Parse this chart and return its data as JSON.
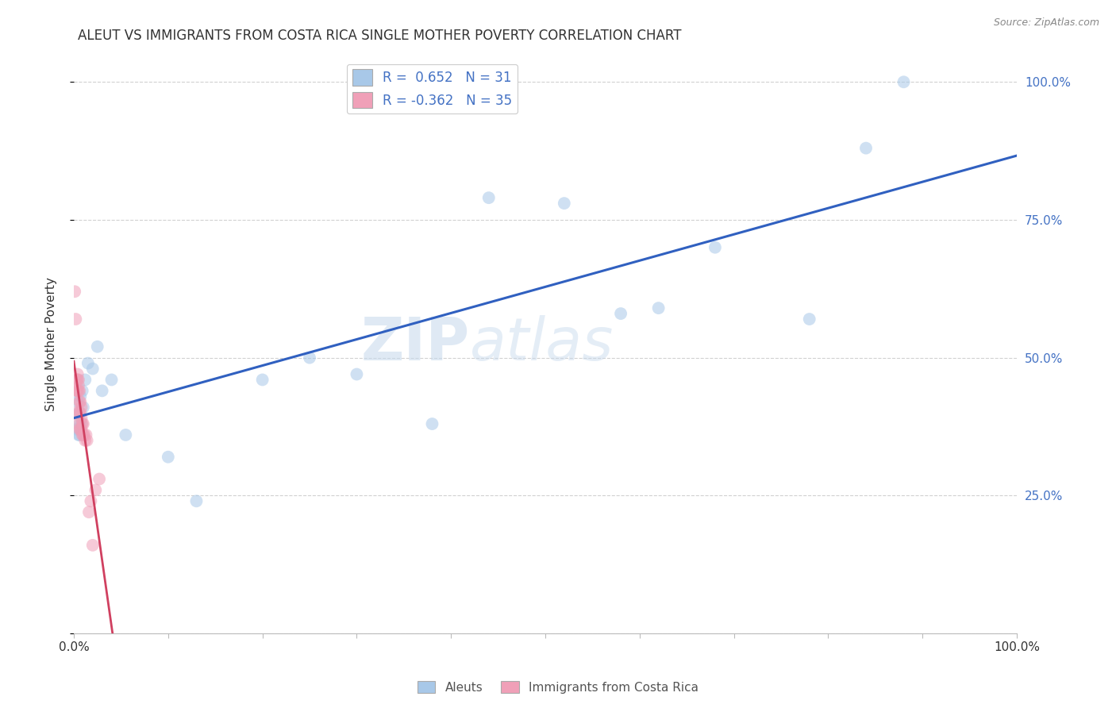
{
  "title": "ALEUT VS IMMIGRANTS FROM COSTA RICA SINGLE MOTHER POVERTY CORRELATION CHART",
  "source": "Source: ZipAtlas.com",
  "ylabel": "Single Mother Poverty",
  "legend_label1": "Aleuts",
  "legend_label2": "Immigrants from Costa Rica",
  "r1": 0.652,
  "n1": 31,
  "r2": -0.362,
  "n2": 35,
  "blue_color": "#a8c8e8",
  "pink_color": "#f0a0b8",
  "blue_line_color": "#3060c0",
  "pink_line_color": "#d04060",
  "watermark_zip": "ZIP",
  "watermark_atlas": "atlas",
  "blue_x": [
    0.003,
    0.004,
    0.005,
    0.005,
    0.006,
    0.006,
    0.007,
    0.008,
    0.009,
    0.01,
    0.012,
    0.015,
    0.02,
    0.025,
    0.03,
    0.04,
    0.055,
    0.1,
    0.13,
    0.2,
    0.25,
    0.3,
    0.38,
    0.44,
    0.52,
    0.58,
    0.62,
    0.68,
    0.78,
    0.84,
    0.88
  ],
  "blue_y": [
    0.37,
    0.42,
    0.36,
    0.4,
    0.36,
    0.38,
    0.43,
    0.38,
    0.44,
    0.41,
    0.46,
    0.49,
    0.48,
    0.52,
    0.44,
    0.46,
    0.36,
    0.32,
    0.24,
    0.46,
    0.5,
    0.47,
    0.38,
    0.79,
    0.78,
    0.58,
    0.59,
    0.7,
    0.57,
    0.88,
    1.0
  ],
  "pink_x": [
    0.001,
    0.002,
    0.002,
    0.003,
    0.003,
    0.003,
    0.004,
    0.004,
    0.004,
    0.005,
    0.005,
    0.005,
    0.006,
    0.006,
    0.006,
    0.006,
    0.007,
    0.007,
    0.007,
    0.008,
    0.008,
    0.008,
    0.009,
    0.009,
    0.01,
    0.01,
    0.011,
    0.012,
    0.013,
    0.014,
    0.016,
    0.018,
    0.02,
    0.023,
    0.027
  ],
  "pink_y": [
    0.62,
    0.57,
    0.4,
    0.38,
    0.44,
    0.46,
    0.44,
    0.46,
    0.47,
    0.44,
    0.45,
    0.46,
    0.37,
    0.4,
    0.42,
    0.44,
    0.37,
    0.4,
    0.42,
    0.37,
    0.39,
    0.41,
    0.36,
    0.38,
    0.36,
    0.38,
    0.36,
    0.35,
    0.36,
    0.35,
    0.22,
    0.24,
    0.16,
    0.26,
    0.28
  ],
  "xlim": [
    0.0,
    1.0
  ],
  "ylim": [
    0.0,
    1.05
  ],
  "yticks": [
    0.0,
    0.25,
    0.5,
    0.75,
    1.0
  ],
  "ytick_labels": [
    "",
    "25.0%",
    "50.0%",
    "75.0%",
    "100.0%"
  ],
  "xtick_positions": [
    0.0,
    0.1,
    0.2,
    0.3,
    0.4,
    0.5,
    0.6,
    0.7,
    0.8,
    0.9,
    1.0
  ],
  "xtick_labels_show": [
    "0.0%",
    "",
    "",
    "",
    "",
    "",
    "",
    "",
    "",
    "",
    "100.0%"
  ],
  "background_color": "#ffffff",
  "grid_color": "#cccccc",
  "title_fontsize": 12,
  "axis_label_fontsize": 11,
  "tick_fontsize": 11,
  "marker_size": 130,
  "marker_alpha": 0.55
}
